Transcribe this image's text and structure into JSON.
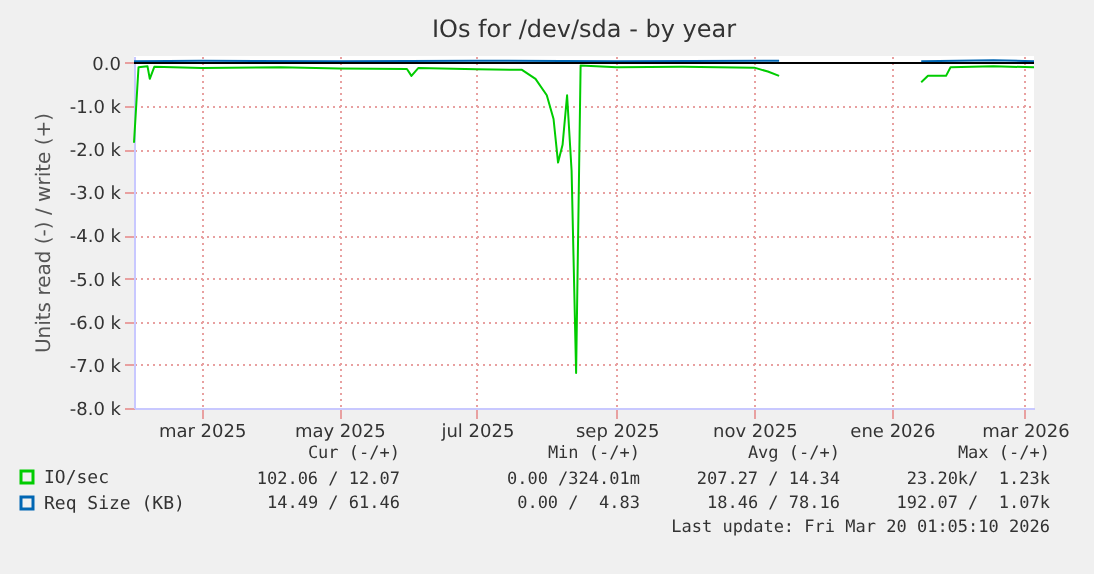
{
  "chart_data": {
    "type": "line",
    "title": "IOs for /dev/sda - by year",
    "ylabel": "Units read (-) / write (+)",
    "xlim": [
      "2025-01-30",
      "2026-03-05"
    ],
    "xticks": [
      {
        "value": "2025-03-01",
        "label": "mar 2025"
      },
      {
        "value": "2025-05-01",
        "label": "may 2025"
      },
      {
        "value": "2025-07-01",
        "label": "jul 2025"
      },
      {
        "value": "2025-09-01",
        "label": "sep 2025"
      },
      {
        "value": "2025-11-01",
        "label": "nov 2025"
      },
      {
        "value": "2026-01-01",
        "label": "ene 2026"
      },
      {
        "value": "2026-03-01",
        "label": "mar 2026"
      }
    ],
    "ylim": [
      -8000,
      160
    ],
    "yticks": [
      {
        "value": -8000,
        "label": "-8.0 k"
      },
      {
        "value": -7000,
        "label": "-7.0 k"
      },
      {
        "value": -6000,
        "label": "-6.0 k"
      },
      {
        "value": -5000,
        "label": "-5.0 k"
      },
      {
        "value": -4000,
        "label": "-4.0 k"
      },
      {
        "value": -3000,
        "label": "-3.0 k"
      },
      {
        "value": -2000,
        "label": "-2.0 k"
      },
      {
        "value": -1000,
        "label": "-1.0 k"
      },
      {
        "value": 0,
        "label": "0.0"
      }
    ],
    "grid": true,
    "legend": "bottom left",
    "ref_lines": [
      {
        "axis": "y",
        "value": 0,
        "color": "#000000"
      }
    ],
    "series": [
      {
        "name": "IO/sec",
        "color": "#00cc00",
        "x": [
          "2025-01-30",
          "2025-02-01",
          "2025-02-05",
          "2025-02-06",
          "2025-02-08",
          "2025-03-01",
          "2025-04-05",
          "2025-05-01",
          "2025-05-31",
          "2025-06-02",
          "2025-06-05",
          "2025-07-01",
          "2025-07-21",
          "2025-07-27",
          "2025-08-01",
          "2025-08-04",
          "2025-08-06",
          "2025-08-08",
          "2025-08-10",
          "2025-08-12",
          "2025-08-14",
          "2025-08-16",
          "2025-09-01",
          "2025-09-30",
          "2025-11-01",
          "2025-11-07",
          "2025-11-12",
          "2025-12-01",
          "2026-01-14",
          "2026-01-17",
          "2026-01-25",
          "2026-01-27",
          "2026-02-15",
          "2026-03-05"
        ],
        "values": [
          -1850,
          -100,
          -80,
          -370,
          -90,
          -120,
          -100,
          -130,
          -140,
          -300,
          -120,
          -150,
          -160,
          -370,
          -750,
          -1300,
          -2310,
          -1900,
          -750,
          -2500,
          -7190,
          -60,
          -100,
          -90,
          -110,
          -200,
          -300,
          null,
          -450,
          -300,
          -300,
          -100,
          -80,
          -100
        ]
      },
      {
        "name": "Req Size (KB)",
        "color": "#0066b3",
        "x": [
          "2025-01-30",
          "2025-03-01",
          "2025-05-01",
          "2025-07-01",
          "2025-09-01",
          "2025-11-12",
          "2025-12-01",
          "2026-01-14",
          "2026-02-15",
          "2026-03-05"
        ],
        "values": [
          40,
          50,
          40,
          50,
          40,
          50,
          null,
          40,
          60,
          40
        ]
      }
    ],
    "annotations": [
      "Cur (-/+)",
      "Min (-/+)",
      "Avg (-/+)",
      "Max (-/+)",
      "102.06 / 12.07",
      "0.00 /324.01m",
      "207.27 / 14.34",
      "23.20k/  1.23k",
      "14.49 / 61.46",
      "0.00 /  4.83",
      "18.46 / 78.16",
      "192.07 /  1.07k",
      "Last update: Fri Mar 20 01:05:10 2026"
    ]
  }
}
